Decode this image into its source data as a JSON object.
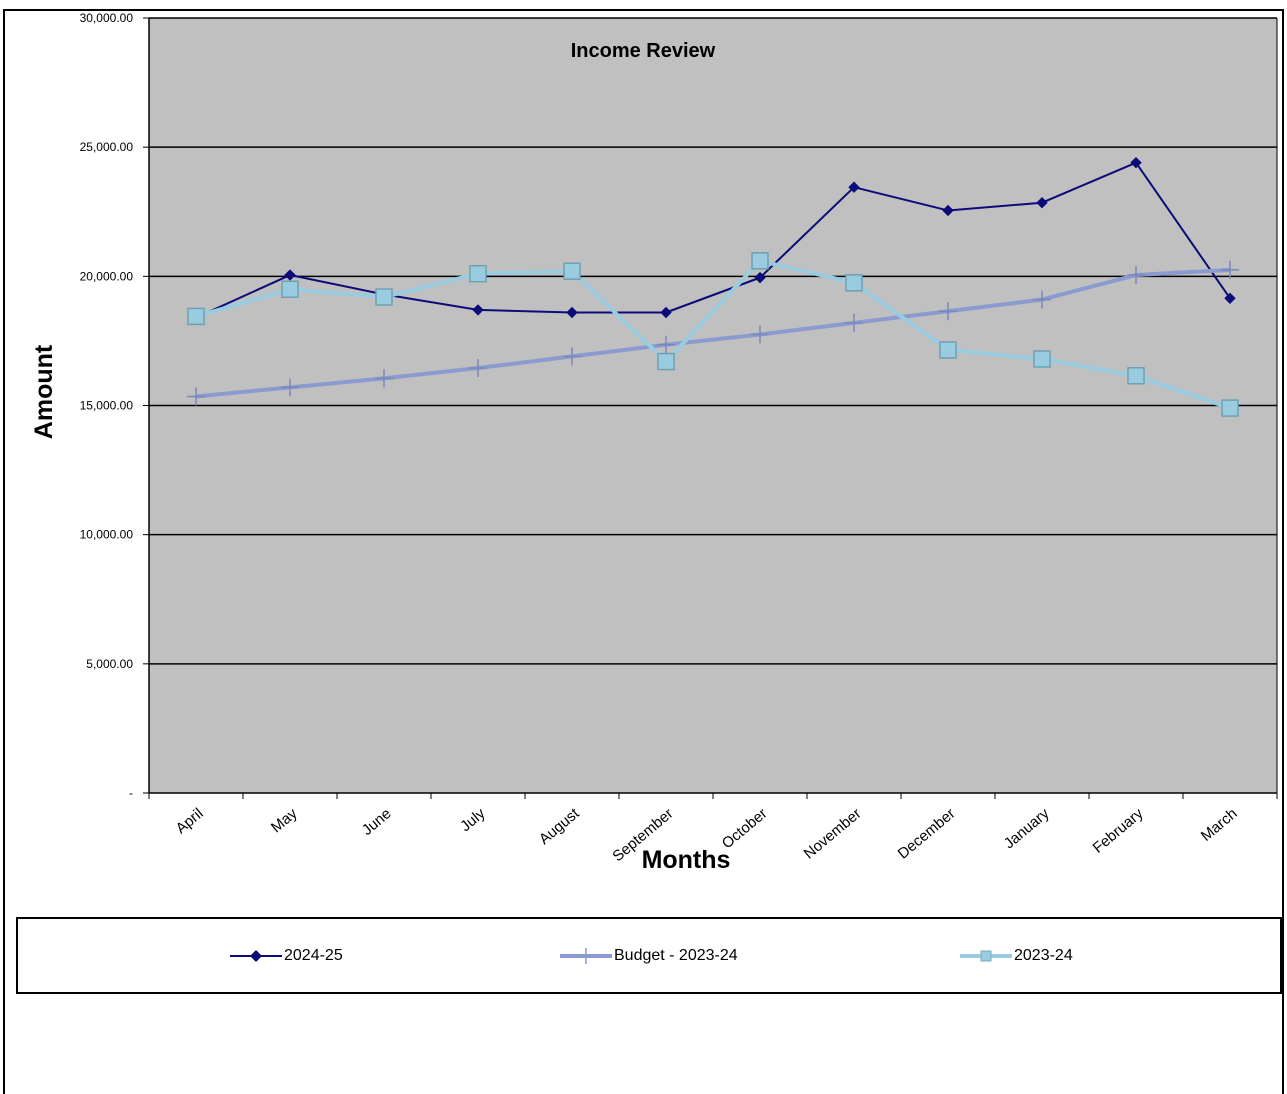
{
  "chart_data": {
    "type": "line",
    "title": "Income Review",
    "xlabel": "Months",
    "ylabel": "Amount",
    "ylim": [
      0,
      30000
    ],
    "y_ticks": [
      {
        "value": 0,
        "label": "-"
      },
      {
        "value": 5000,
        "label": "5,000.00"
      },
      {
        "value": 10000,
        "label": "10,000.00"
      },
      {
        "value": 15000,
        "label": "15,000.00"
      },
      {
        "value": 20000,
        "label": "20,000.00"
      },
      {
        "value": 25000,
        "label": "25,000.00"
      },
      {
        "value": 30000,
        "label": "30,000.00"
      }
    ],
    "categories": [
      "April",
      "May",
      "June",
      "July",
      "August",
      "September",
      "October",
      "November",
      "December",
      "January",
      "February",
      "March"
    ],
    "series": [
      {
        "name": "2024-25",
        "color": "#0b0b7a",
        "marker": "diamond",
        "values": [
          18400,
          20050,
          19300,
          18700,
          18600,
          18600,
          19950,
          23450,
          22550,
          22850,
          24400,
          19150
        ]
      },
      {
        "name": "Budget - 2023-24",
        "color": "#8b9bd0",
        "marker": "plus",
        "values": [
          15350,
          15700,
          16050,
          16450,
          16900,
          17350,
          17750,
          18200,
          18650,
          19100,
          20050,
          20250
        ]
      },
      {
        "name": "2023-24",
        "color": "#99cce0",
        "marker": "square",
        "values": [
          18450,
          19500,
          19200,
          20100,
          20200,
          16700,
          20600,
          19750,
          17150,
          16800,
          16150,
          14900
        ]
      }
    ],
    "grid": true,
    "legend": "bottom",
    "plot_background": "#c0c0c0"
  }
}
